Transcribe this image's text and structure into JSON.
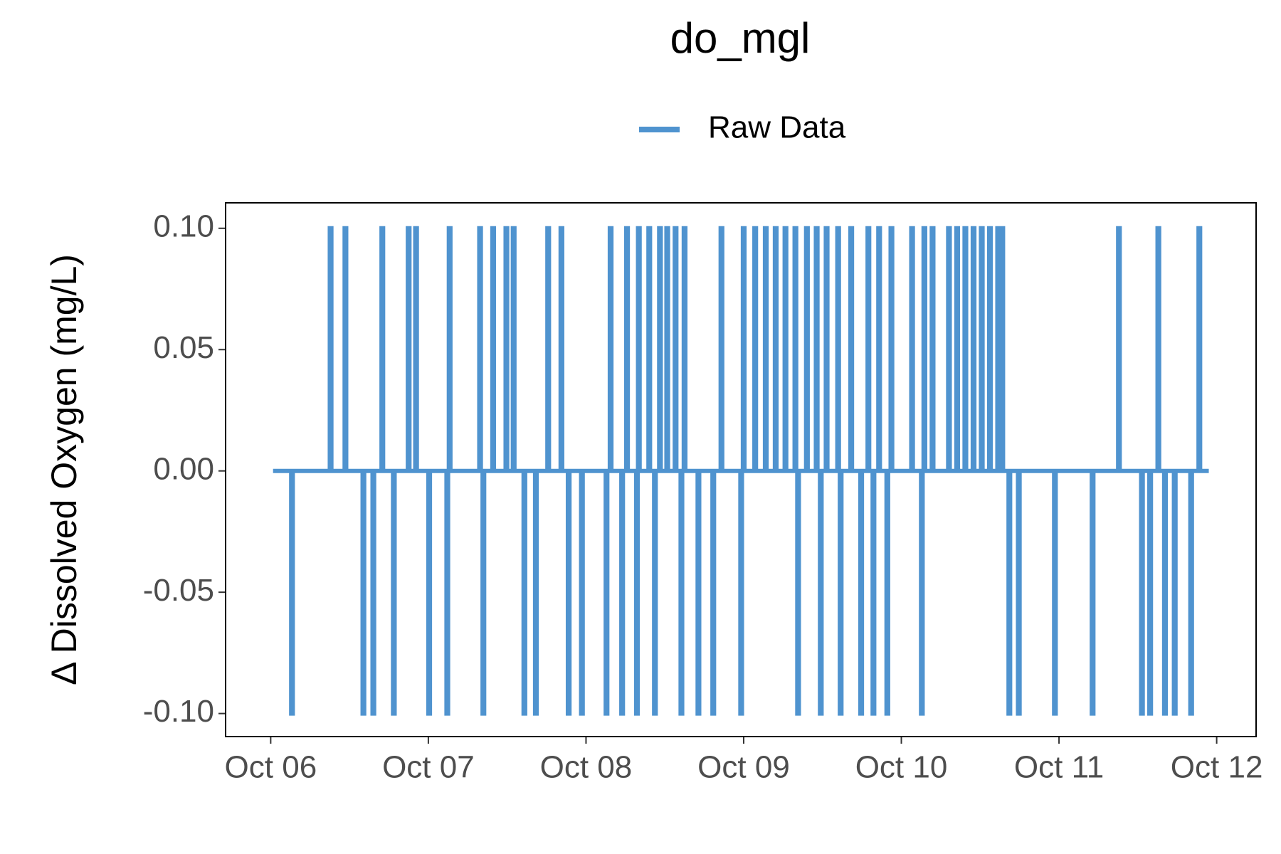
{
  "chart_data": {
    "type": "line",
    "drawstyle": "steps-post",
    "title": "do_mgl",
    "y_label": "Δ Dissolved Oxygen (mg/L)",
    "legend": "top",
    "xlim": [
      -0.286,
      6.25
    ],
    "ylim": [
      -0.1095,
      0.1105
    ],
    "xticks": [
      {
        "value": 0,
        "label": "Oct 06"
      },
      {
        "value": 1,
        "label": "Oct 07"
      },
      {
        "value": 2,
        "label": "Oct 08"
      },
      {
        "value": 3,
        "label": "Oct 09"
      },
      {
        "value": 4,
        "label": "Oct 10"
      },
      {
        "value": 5,
        "label": "Oct 11"
      },
      {
        "value": 6,
        "label": "Oct 12"
      }
    ],
    "yticks": [
      {
        "value": -0.1,
        "label": "-0.10"
      },
      {
        "value": -0.05,
        "label": "-0.05"
      },
      {
        "value": 0,
        "label": "0.00"
      },
      {
        "value": 0.05,
        "label": "0.05"
      },
      {
        "value": 0.1,
        "label": "0.10"
      }
    ],
    "series": [
      {
        "name": "Raw Data",
        "color": "#4f93cf",
        "x": [
          0.015,
          0.13,
          0.14,
          0.375,
          0.385,
          0.469,
          0.479,
          0.583,
          0.593,
          0.646,
          0.656,
          0.703,
          0.713,
          0.776,
          0.786,
          0.87,
          0.88,
          0.917,
          0.927,
          1.0,
          1.01,
          1.115,
          1.125,
          1.13,
          1.14,
          1.323,
          1.333,
          1.344,
          1.354,
          1.406,
          1.416,
          1.49,
          1.5,
          1.536,
          1.546,
          1.604,
          1.614,
          1.677,
          1.687,
          1.755,
          1.765,
          1.839,
          1.849,
          1.885,
          1.895,
          1.969,
          1.979,
          2.125,
          2.135,
          2.151,
          2.161,
          2.224,
          2.234,
          2.255,
          2.265,
          2.318,
          2.328,
          2.33,
          2.34,
          2.396,
          2.406,
          2.432,
          2.442,
          2.464,
          2.474,
          2.51,
          2.52,
          2.563,
          2.573,
          2.6,
          2.61,
          2.62,
          2.63,
          2.708,
          2.718,
          2.802,
          2.812,
          2.854,
          2.864,
          2.979,
          2.989,
          2.995,
          3.005,
          3.068,
          3.078,
          3.135,
          3.145,
          3.198,
          3.208,
          3.26,
          3.27,
          3.323,
          3.333,
          3.34,
          3.35,
          3.396,
          3.406,
          3.458,
          3.468,
          3.484,
          3.494,
          3.521,
          3.531,
          3.594,
          3.604,
          3.61,
          3.62,
          3.677,
          3.687,
          3.74,
          3.75,
          3.786,
          3.796,
          3.818,
          3.828,
          3.854,
          3.864,
          3.906,
          3.916,
          3.932,
          3.942,
          4.063,
          4.073,
          4.125,
          4.135,
          4.141,
          4.151,
          4.193,
          4.203,
          4.297,
          4.307,
          4.349,
          4.359,
          4.401,
          4.411,
          4.453,
          4.463,
          4.505,
          4.515,
          4.557,
          4.567,
          4.609,
          4.619,
          4.635,
          4.645,
          4.68,
          4.69,
          4.74,
          4.75,
          4.969,
          4.979,
          5.208,
          5.218,
          5.375,
          5.385,
          5.521,
          5.531,
          5.573,
          5.583,
          5.625,
          5.635,
          5.667,
          5.677,
          5.729,
          5.739,
          5.833,
          5.843,
          5.885,
          5.895,
          5.95
        ],
        "values": [
          0,
          -0.1,
          0,
          0.1,
          0,
          0.1,
          0,
          -0.1,
          0,
          -0.1,
          0,
          0.1,
          0,
          -0.1,
          0,
          0.1,
          0,
          0.1,
          0,
          -0.1,
          0,
          -0.1,
          0,
          0.1,
          0,
          0.1,
          0,
          -0.1,
          0,
          0.1,
          0,
          0.1,
          0,
          0.1,
          0,
          -0.1,
          0,
          -0.1,
          0,
          0.1,
          0,
          0.1,
          0,
          -0.1,
          0,
          -0.1,
          0,
          -0.1,
          0,
          0.1,
          0,
          -0.1,
          0,
          0.1,
          0,
          -0.1,
          0,
          0.1,
          0,
          0.1,
          0,
          -0.1,
          0,
          0.1,
          0,
          0.1,
          0,
          0.1,
          0,
          -0.1,
          0,
          0.1,
          0,
          -0.1,
          0,
          -0.1,
          0,
          0.1,
          0,
          -0.1,
          0,
          0.1,
          0,
          0.1,
          0,
          0.1,
          0,
          0.1,
          0,
          0.1,
          0,
          0.1,
          0,
          -0.1,
          0,
          0.1,
          0,
          0.1,
          0,
          -0.1,
          0,
          0.1,
          0,
          0.1,
          0,
          -0.1,
          0,
          0.1,
          0,
          -0.1,
          0,
          0.1,
          0,
          -0.1,
          0,
          0.1,
          0,
          -0.1,
          0,
          0.1,
          0,
          0.1,
          0,
          -0.1,
          0,
          0.1,
          0,
          0.1,
          0,
          0.1,
          0,
          0.1,
          0,
          0.1,
          0,
          0.1,
          0,
          0.1,
          0,
          0.1,
          0,
          0.1,
          0,
          0.1,
          0,
          -0.1,
          0,
          -0.1,
          0,
          -0.1,
          0,
          -0.1,
          0,
          0.1,
          0,
          -0.1,
          0,
          -0.1,
          0,
          0.1,
          0,
          -0.1,
          0,
          -0.1,
          0,
          -0.1,
          0,
          0.1,
          0,
          0
        ]
      }
    ]
  }
}
